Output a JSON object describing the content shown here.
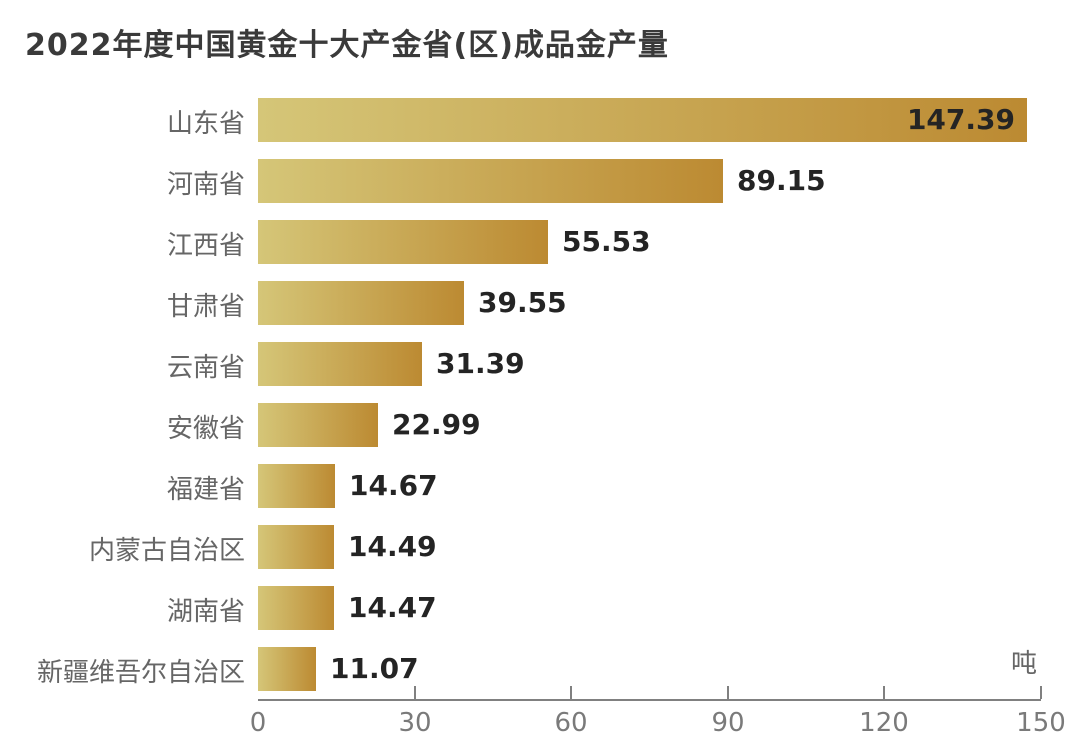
{
  "title": "2022年度中国黄金十大产金省(区)成品金产量",
  "chart_data": {
    "type": "bar",
    "orientation": "horizontal",
    "title": "2022年度中国黄金十大产金省(区)成品金产量",
    "unit_label": "吨",
    "categories": [
      "山东省",
      "河南省",
      "江西省",
      "甘肃省",
      "云南省",
      "安徽省",
      "福建省",
      "内蒙古自治区",
      "湖南省",
      "新疆维吾尔自治区"
    ],
    "values": [
      147.39,
      89.15,
      55.53,
      39.55,
      31.39,
      22.99,
      14.67,
      14.49,
      14.47,
      11.07
    ],
    "value_decimals": 2,
    "xlim": [
      0,
      150
    ],
    "xticks": [
      0,
      30,
      60,
      90,
      120,
      150
    ],
    "grid": false,
    "legend": false,
    "value_labels_position": "end-of-bar, largest bar labeled inside",
    "colors": {
      "bar_gradient_start": "#d5c678",
      "bar_gradient_end": "#bc8a32",
      "title_text": "#3a3a3a",
      "category_text": "#666666",
      "value_text": "#242424",
      "axis_line": "#808080",
      "tick_text": "#7a7a7a",
      "unit_text": "#666666",
      "background": "#ffffff"
    }
  }
}
